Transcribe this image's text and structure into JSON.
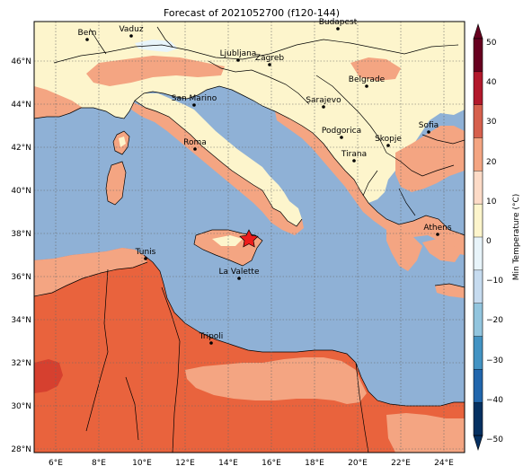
{
  "title": "Forecast of 2021052700 (f120-144)",
  "lon_ticks": [
    "6°E",
    "8°E",
    "10°E",
    "12°E",
    "14°E",
    "16°E",
    "18°E",
    "20°E",
    "22°E",
    "24°E"
  ],
  "lat_ticks": [
    "46°N",
    "44°N",
    "42°N",
    "40°N",
    "38°N",
    "36°N",
    "34°N",
    "32°N",
    "30°N",
    "28°N"
  ],
  "colorbar": {
    "label": "Min Temperature (°C)",
    "ticks": [
      "50",
      "40",
      "30",
      "20",
      "10",
      "0",
      "−10",
      "−20",
      "−30",
      "−40",
      "−50"
    ],
    "colors": [
      "#67001f",
      "#b2182b",
      "#d6604d",
      "#f4a582",
      "#fddbc7",
      "#fdf5cc",
      "#e8f4fa",
      "#c6dbef",
      "#92c5de",
      "#4393c3",
      "#2166ac",
      "#053061"
    ]
  },
  "cities": [
    {
      "name": "Bern"
    },
    {
      "name": "Vaduz"
    },
    {
      "name": "Budapest"
    },
    {
      "name": "Ljubljana"
    },
    {
      "name": "Zagreb"
    },
    {
      "name": "Belgrade"
    },
    {
      "name": "San Marino"
    },
    {
      "name": "Sarajevo"
    },
    {
      "name": "Sofia"
    },
    {
      "name": "Podgorica"
    },
    {
      "name": "Skopje"
    },
    {
      "name": "Roma"
    },
    {
      "name": "Tirana"
    },
    {
      "name": "Athens"
    },
    {
      "name": "Tunis"
    },
    {
      "name": "La Valette"
    },
    {
      "name": "Tripoli"
    }
  ],
  "marker": {
    "type": "star",
    "color": "#ee1c1c"
  }
}
